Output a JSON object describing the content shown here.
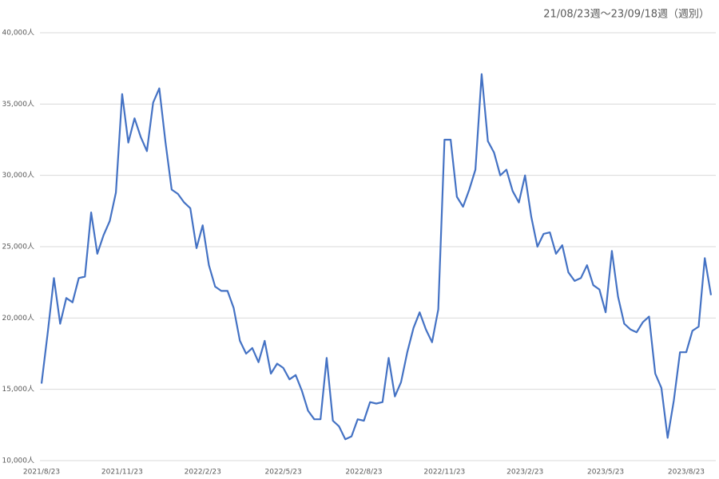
{
  "chart_data": {
    "type": "line",
    "title": "21/08/23週～23/09/18週（週別）",
    "categories": [
      "2021/8/23",
      null,
      null,
      null,
      null,
      null,
      null,
      null,
      null,
      null,
      null,
      null,
      null,
      "2021/11/23",
      null,
      null,
      null,
      null,
      null,
      null,
      null,
      null,
      null,
      null,
      null,
      null,
      "2022/2/23",
      null,
      null,
      null,
      null,
      null,
      null,
      null,
      null,
      null,
      null,
      null,
      null,
      "2022/5/23",
      null,
      null,
      null,
      null,
      null,
      null,
      null,
      null,
      null,
      null,
      null,
      null,
      "2022/8/23",
      null,
      null,
      null,
      null,
      null,
      null,
      null,
      null,
      null,
      null,
      null,
      null,
      "2022/11/23",
      null,
      null,
      null,
      null,
      null,
      null,
      null,
      null,
      null,
      null,
      null,
      null,
      "2023/2/23",
      null,
      null,
      null,
      null,
      null,
      null,
      null,
      null,
      null,
      null,
      null,
      null,
      "2023/5/23",
      null,
      null,
      null,
      null,
      null,
      null,
      null,
      null,
      null,
      null,
      null,
      null,
      "2023/8/23",
      null,
      null,
      null,
      null
    ],
    "values": [
      15400,
      19000,
      22800,
      19600,
      21400,
      21100,
      22800,
      22900,
      27400,
      24500,
      25800,
      26800,
      28800,
      35700,
      32300,
      34000,
      32700,
      31700,
      35100,
      36100,
      32300,
      29000,
      28700,
      28100,
      27700,
      24900,
      26500,
      23700,
      22200,
      21900,
      21900,
      20700,
      18400,
      17500,
      17900,
      16900,
      18400,
      16100,
      16800,
      16500,
      15700,
      16000,
      14900,
      13500,
      12900,
      12900,
      17200,
      12800,
      12400,
      11500,
      11700,
      12900,
      12800,
      14100,
      14000,
      14100,
      17200,
      14500,
      15500,
      17600,
      19300,
      20400,
      19200,
      18300,
      20600,
      32500,
      32500,
      28500,
      27800,
      29000,
      30400,
      37100,
      32400,
      31600,
      30000,
      30400,
      28900,
      28100,
      30000,
      27100,
      25000,
      25900,
      26000,
      24500,
      25100,
      23200,
      22600,
      22800,
      23700,
      22300,
      22000,
      20400,
      24700,
      21500,
      19600,
      19200,
      19000,
      19700,
      20100,
      16100,
      15100,
      11600,
      14200,
      17600,
      17600,
      19100,
      19400,
      24200,
      21600
    ],
    "color": "#4472c4",
    "ylim": [
      10000,
      40000
    ],
    "yticks": [
      {
        "value": 10000,
        "label": "10,000人"
      },
      {
        "value": 15000,
        "label": "15,000人"
      },
      {
        "value": 20000,
        "label": "20,000人"
      },
      {
        "value": 25000,
        "label": "25,000人"
      },
      {
        "value": 30000,
        "label": "30,000人"
      },
      {
        "value": 35000,
        "label": "35,000人"
      },
      {
        "value": 40000,
        "label": "40,000人"
      }
    ],
    "grid": true
  }
}
